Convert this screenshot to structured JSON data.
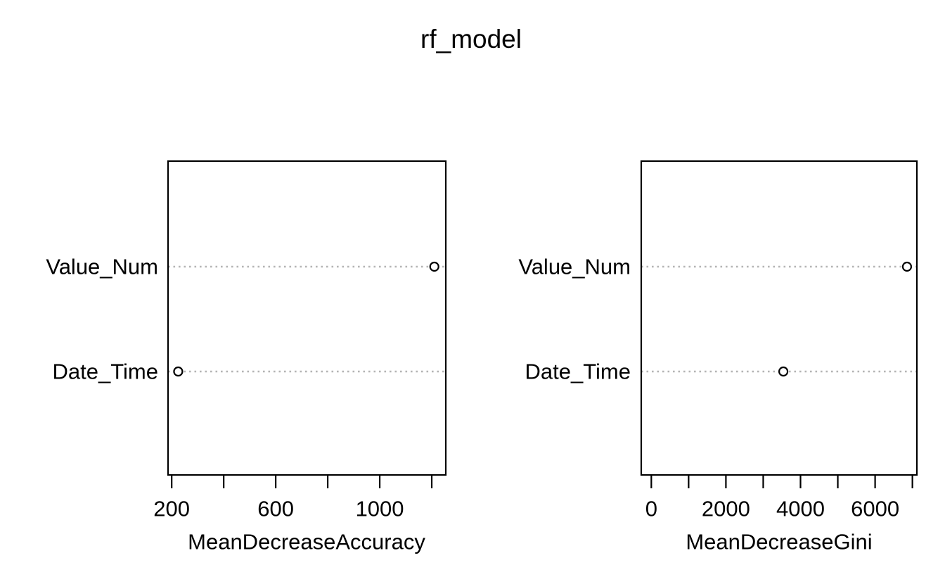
{
  "figure": {
    "title": "rf_model",
    "background": "#ffffff",
    "text_color": "#000000",
    "grid_color": "#b4b4b4",
    "point_color": "#000000",
    "point_fill": "#ffffff"
  },
  "chart_data": [
    {
      "type": "scatter",
      "subtype": "dotchart",
      "title": "rf_model",
      "xlabel": "MeanDecreaseAccuracy",
      "ylabel": "",
      "categories": [
        "Value_Num",
        "Date_Time"
      ],
      "values": [
        1210,
        225
      ],
      "xlim": [
        186,
        1254
      ],
      "xticks": [
        200,
        400,
        600,
        800,
        1000,
        1200
      ],
      "xtick_labels": [
        "200",
        "",
        "600",
        "",
        "1000",
        ""
      ],
      "grid": "horizontal dotted lines",
      "legend": "none",
      "point_style": "open circle"
    },
    {
      "type": "scatter",
      "subtype": "dotchart",
      "title": "rf_model",
      "xlabel": "MeanDecreaseGini",
      "ylabel": "",
      "categories": [
        "Value_Num",
        "Date_Time"
      ],
      "values": [
        6855,
        3540
      ],
      "xlim": [
        -270,
        7120
      ],
      "xticks": [
        0,
        1000,
        2000,
        3000,
        4000,
        5000,
        6000,
        7000
      ],
      "xtick_labels": [
        "0",
        "",
        "2000",
        "",
        "4000",
        "",
        "6000",
        ""
      ],
      "grid": "horizontal dotted lines",
      "legend": "none",
      "point_style": "open circle"
    }
  ]
}
